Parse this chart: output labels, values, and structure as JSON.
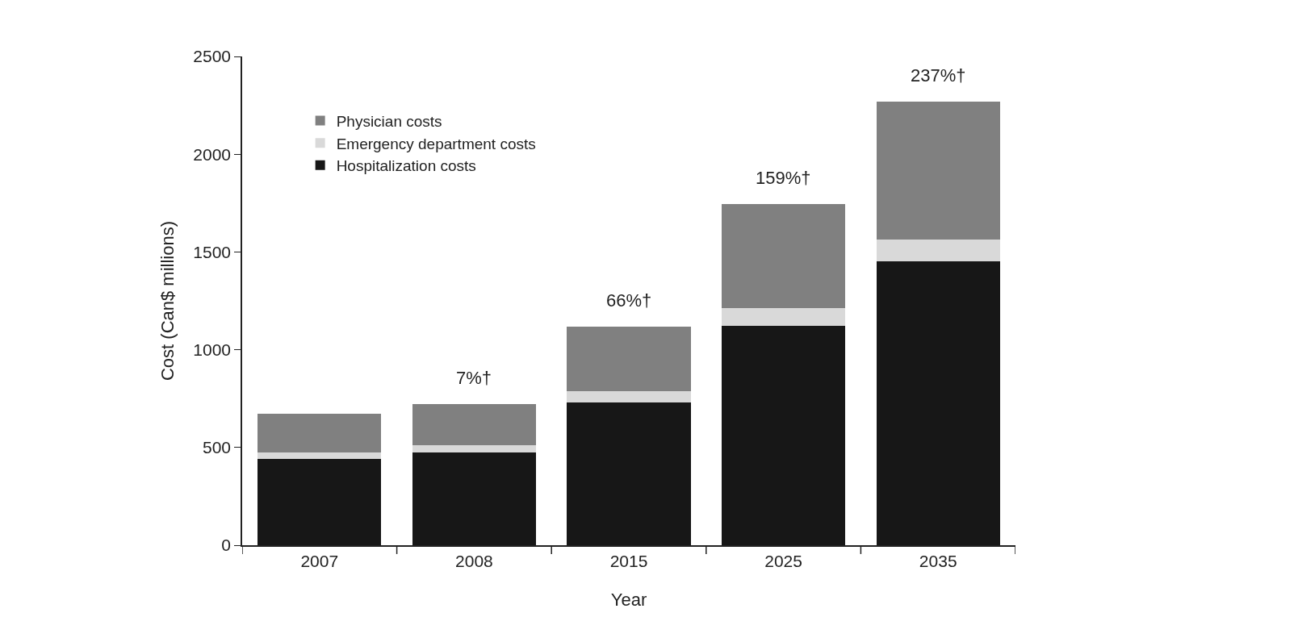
{
  "chart_data": {
    "type": "bar",
    "stacked": true,
    "xlabel": "Year",
    "ylabel": "Cost (Can$ millions)",
    "categories": [
      "2007",
      "2008",
      "2015",
      "2025",
      "2035"
    ],
    "series": [
      {
        "name": "Hospitalization costs",
        "color": "#171717",
        "values": [
          442,
          473,
          730,
          1121,
          1452
        ]
      },
      {
        "name": "Emergency department costs",
        "color": "#d9d9d9",
        "values": [
          31,
          38,
          56,
          92,
          113
        ]
      },
      {
        "name": "Physician costs",
        "color": "#808080",
        "values": [
          201,
          211,
          333,
          531,
          705
        ]
      }
    ],
    "ylim": [
      0,
      2500
    ],
    "yticks": [
      0,
      500,
      1000,
      1500,
      2000,
      2500
    ],
    "grid": false,
    "legend": "top left",
    "annotations": [
      {
        "text": "7%†",
        "x": "2008",
        "y": 722
      },
      {
        "text": "66%†",
        "x": "2015",
        "y": 1119
      },
      {
        "text": "159%†",
        "x": "2025",
        "y": 1744
      },
      {
        "text": "237%†",
        "x": "2035",
        "y": 2270
      }
    ]
  }
}
